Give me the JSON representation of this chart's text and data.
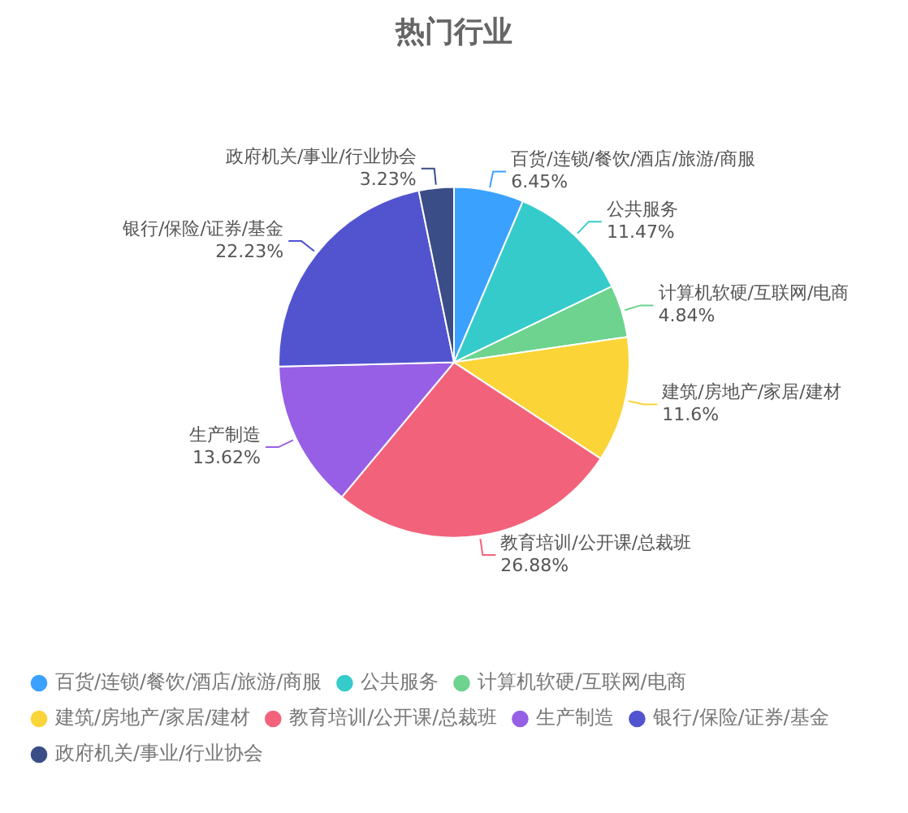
{
  "chart_data": {
    "type": "pie",
    "title": "热门行业",
    "categories": [
      "百货/连锁/餐饮/酒店/旅游/商服",
      "公共服务",
      "计算机软硬/互联网/电商",
      "建筑/房地产/家居/建材",
      "教育培训/公开课/总裁班",
      "生产制造",
      "银行/保险/证券/基金",
      "政府机关/事业/行业协会"
    ],
    "values": [
      6.45,
      11.47,
      4.84,
      11.6,
      26.88,
      13.62,
      22.23,
      3.23
    ],
    "colors": [
      "#3ba1ff",
      "#36cbcb",
      "#6dd38f",
      "#fbd437",
      "#f2637b",
      "#975fe5",
      "#5254cf",
      "#3b4d87"
    ],
    "value_labels": [
      "6.45%",
      "11.47%",
      "4.84%",
      "11.6%",
      "26.88%",
      "13.62%",
      "22.23%",
      "3.23%"
    ],
    "legend": "bottom"
  }
}
